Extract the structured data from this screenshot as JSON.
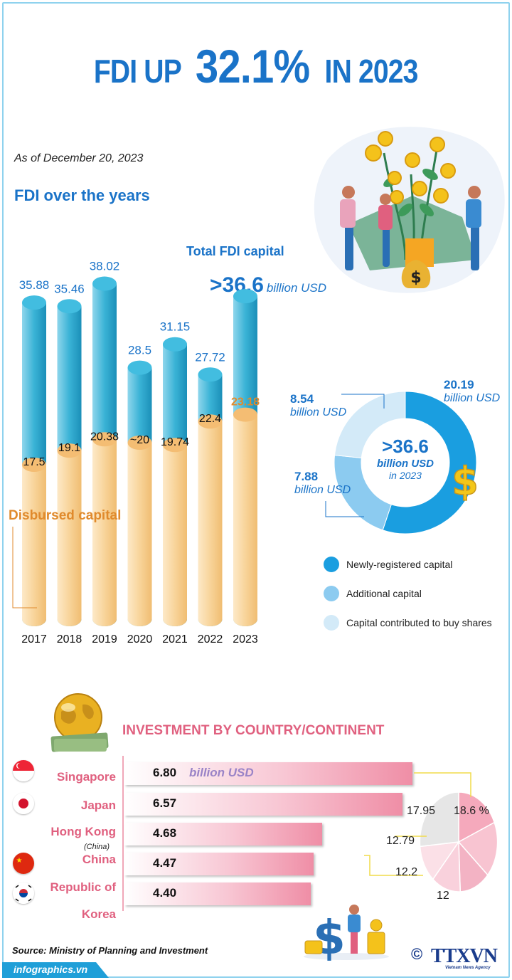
{
  "title": {
    "part1": "FDI UP",
    "part2": "32.1%",
    "part3": "IN 2023"
  },
  "as_of": "As of December 20, 2023",
  "section_fdi": "FDI over the years",
  "total": {
    "label": "Total FDI capital",
    "value": ">36.6",
    "unit": "billion USD"
  },
  "disbursed_label": "Disbursed capital",
  "colors": {
    "blue": "#1a73c8",
    "cyan": "#3ab3d6",
    "orange": "#f6c67e",
    "pink": "#e0607f",
    "orange_text": "#e08a2c"
  },
  "chart_data": [
    {
      "type": "bar",
      "categories": [
        "2017",
        "2018",
        "2019",
        "2020",
        "2021",
        "2022",
        "2023"
      ],
      "series": [
        {
          "name": "Total FDI capital",
          "values": [
            35.88,
            35.46,
            38.02,
            28.5,
            31.15,
            27.72,
            36.6
          ],
          "labels": [
            "35.88",
            "35.46",
            "38.02",
            "28.5",
            "31.15",
            "27.72",
            ""
          ]
        },
        {
          "name": "Disbursed capital",
          "values": [
            17.5,
            19.1,
            20.38,
            20,
            19.74,
            22.4,
            23.18
          ],
          "labels": [
            "17.5",
            "19.1",
            "20.38",
            "~20",
            "19.74",
            "22.4",
            "23.18"
          ]
        }
      ]
    },
    {
      "type": "pie",
      "categories": [
        "Newly-registered capital",
        "Additional capital",
        "Capital contributed to buy shares"
      ],
      "values": [
        20.19,
        7.88,
        8.54
      ],
      "labels": [
        "20.19",
        "7.88",
        "8.54"
      ],
      "unit": "billion USD",
      "center": {
        "value": ">36.6",
        "unit": "billion USD",
        "year": "in 2023"
      }
    },
    {
      "type": "bar",
      "title": "INVESTMENT BY COUNTRY/CONTINENT",
      "categories": [
        "Singapore",
        "Japan",
        "Hong Kong",
        "China",
        "Republic of Korea"
      ],
      "values": [
        6.8,
        6.57,
        4.68,
        4.47,
        4.4
      ],
      "labels": [
        "6.80",
        "6.57",
        "4.68",
        "4.47",
        "4.40"
      ],
      "unit": "billion USD"
    },
    {
      "type": "pie",
      "values": [
        18.6,
        17.95,
        12.79,
        12.2,
        12,
        26.46
      ],
      "labels": [
        "18.6 %",
        "17.95",
        "12.79",
        "12.2",
        "12",
        ""
      ]
    }
  ],
  "legend": [
    {
      "label": "Newly-registered capital",
      "color": "#1a9ee0"
    },
    {
      "label": "Additional capital",
      "color": "#8ccbf0"
    },
    {
      "label": "Capital contributed to buy shares",
      "color": "#d3eaf8"
    }
  ],
  "investment": {
    "title": "INVESTMENT BY COUNTRY/CONTINENT",
    "countries": [
      {
        "name": "Singapore",
        "value": "6.80",
        "unit": "billion USD"
      },
      {
        "name": "Japan",
        "value": "6.57"
      },
      {
        "name": "Hong Kong",
        "sub": "(China)",
        "value": "4.68"
      },
      {
        "name": "China",
        "value": "4.47"
      },
      {
        "name": "Republic of",
        "name2": "Korea",
        "value": "4.40"
      }
    ]
  },
  "source": "Source: Ministry of Planning and Investment",
  "footer": "infographics.vn",
  "logo": {
    "text": "TTXVN",
    "sub": "Vietnam News Agency",
    "copyright": "©"
  }
}
